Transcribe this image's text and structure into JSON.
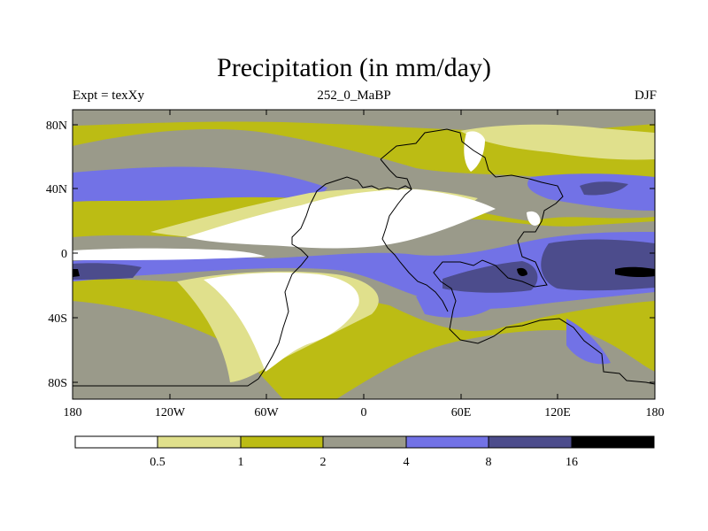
{
  "title": "Precipitation (in mm/day)",
  "subtitle_left": "Expt = texXy",
  "subtitle_center": "252_0_MaBP",
  "subtitle_right": "DJF",
  "colors": {
    "white": "#ffffff",
    "light_yellow": "#e0e08c",
    "olive": "#bcbc14",
    "gray": "#9a9a8a",
    "blue": "#7272e6",
    "dark_blue": "#4c4c8c",
    "black": "#000000"
  },
  "lat_ticks": [
    "80N",
    "40N",
    "0",
    "40S",
    "80S"
  ],
  "lon_ticks": [
    "180",
    "120W",
    "60W",
    "0",
    "60E",
    "120E",
    "180"
  ],
  "colorbar": {
    "labels": [
      "0.5",
      "1",
      "2",
      "4",
      "8",
      "16"
    ],
    "levels": [
      0.5,
      1,
      2,
      4,
      8,
      16
    ],
    "swatches": [
      "#ffffff",
      "#e0e08c",
      "#bcbc14",
      "#9a9a8a",
      "#7272e6",
      "#4c4c8c",
      "#000000"
    ]
  }
}
